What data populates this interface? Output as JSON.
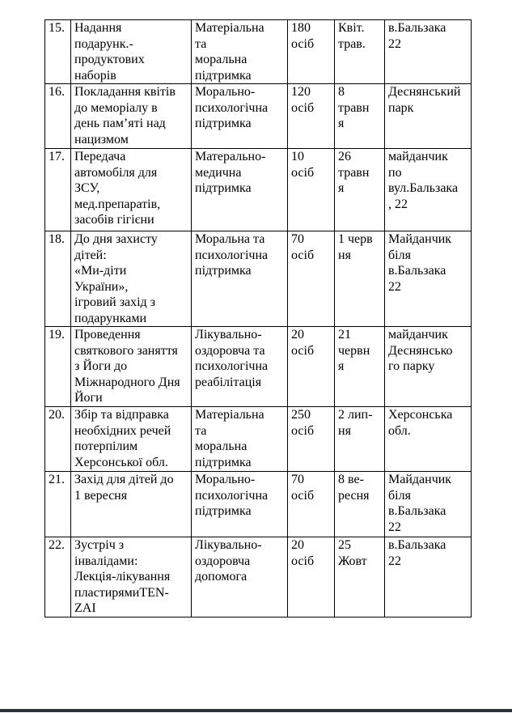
{
  "document": {
    "language": "uk",
    "colors": {
      "text": "#000000",
      "table_border": "#000000",
      "bottom_rule": "#2e3238"
    }
  },
  "table": {
    "rows": [
      {
        "num": "15.",
        "activity": "Надання\nподарунк.-\nпродуктових\nнаборів",
        "support": "Матеріальна\nта\nморальна\nпідтримка",
        "people": "180\nосіб",
        "date": "Квіт.\nтрав.",
        "location": "в.Бальзака\n22"
      },
      {
        "num": "16.",
        "activity": "Покладання квітів\nдо меморіалу в\nдень пам’яті над\nнацизмом",
        "support": "Морально-\nпсихологічна\nпідтримка",
        "people": "120\nосіб",
        "date": "8\nтравн\nя",
        "location": "Деснянський\nпарк"
      },
      {
        "num": "17.",
        "activity": "Передача\nавтомобіля для\nЗСУ,\nмед.препаратів,\nзасобів гігієни",
        "support": "Матерально-\nмедична\nпідтримка",
        "people": "10\nосіб",
        "date": "26\nтравн\nя",
        "location": "майданчик\nпо\nвул.Бальзака\n, 22"
      },
      {
        "num": "18.",
        "activity": "До дня захисту\nдітей:\n«Ми-діти\nУкраїни»,\nігровий захід з\nподарунками",
        "support": "Моральна та\nпсихологічна\nпідтримка",
        "people": "70\nосіб",
        "date": "1 черв\nня",
        "location": "Майданчик\nбіля\nв.Бальзака\n22"
      },
      {
        "num": "19.",
        "activity": "Проведення\nсвяткового заняття\nз Йоги до\nМіжнародного Дня\nЙоги",
        "support": "Лікувально-\nоздоровча та\nпсихологічна\nреабілітація",
        "people": "20\nосіб",
        "date": "21\nчервн\nя",
        "location": "майданчик\nДеснянсько\nго парку"
      },
      {
        "num": "20.",
        "activity": "Збір та відправка\nнеобхідних речей\nпотерпілим\nХерсонської обл.",
        "support": "Матеріальна\nта\nморальна\nпідтримка",
        "people": "250\nосіб",
        "date": "2 лип-\nня",
        "location": "Херсонська\nобл."
      },
      {
        "num": "21.",
        "activity": "Захід для дітей до\n1 вересня",
        "support": "Морально-\nпсихологічна\nпідтримка",
        "people": "70\nосіб",
        "date": "8 ве-\nресня",
        "location": "Майданчик\nбіля\nв.Бальзака\n22"
      },
      {
        "num": "22.",
        "activity": "Зустріч з\nінвалідами:\nЛекція-лікування\nпластирямиTEN-\nZAI",
        "support": "Лікувально-\nоздоровча\nдопомога",
        "people": "20\nосіб",
        "date": "25\nЖовт",
        "location": "в.Бальзака\n22"
      }
    ]
  }
}
